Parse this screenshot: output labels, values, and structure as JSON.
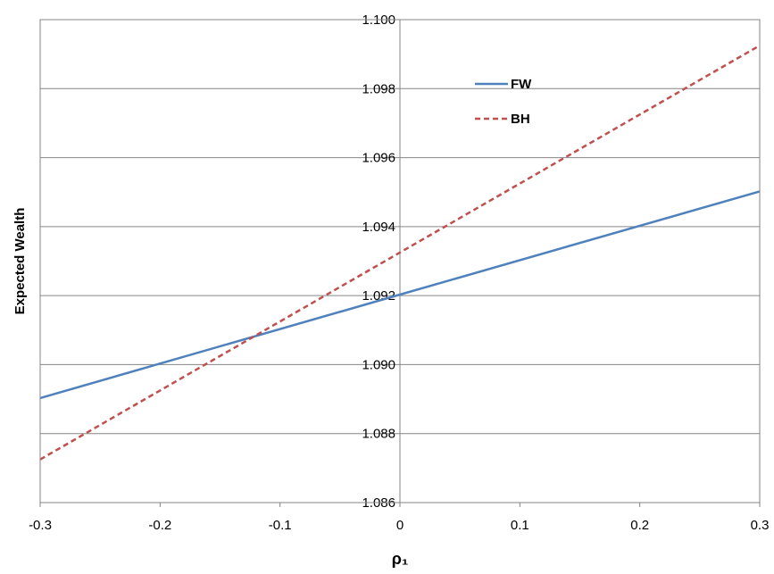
{
  "chart_data": {
    "type": "line",
    "title": "",
    "xlabel": "ρ₁",
    "ylabel": "Expected Wealth",
    "xlim": [
      -0.3,
      0.3
    ],
    "ylim": [
      1.086,
      1.1
    ],
    "x_ticks": [
      "-0.3",
      "-0.2",
      "-0.1",
      "0",
      "0.1",
      "0.2",
      "0.3"
    ],
    "y_ticks": [
      "1.086",
      "1.088",
      "1.090",
      "1.092",
      "1.094",
      "1.096",
      "1.098",
      "1.100"
    ],
    "grid": "horizontal and vertical at zero",
    "legend_position": "top-center-right",
    "series": [
      {
        "name": "FW",
        "x": [
          -0.3,
          0.0,
          0.3
        ],
        "values": [
          1.08903,
          1.09203,
          1.09502
        ],
        "color": "#4f81bd",
        "style": "solid"
      },
      {
        "name": "BH",
        "x": [
          -0.3,
          0.3
        ],
        "values": [
          1.08725,
          1.09925
        ],
        "color": "#c0504d",
        "style": "dashed"
      }
    ]
  }
}
